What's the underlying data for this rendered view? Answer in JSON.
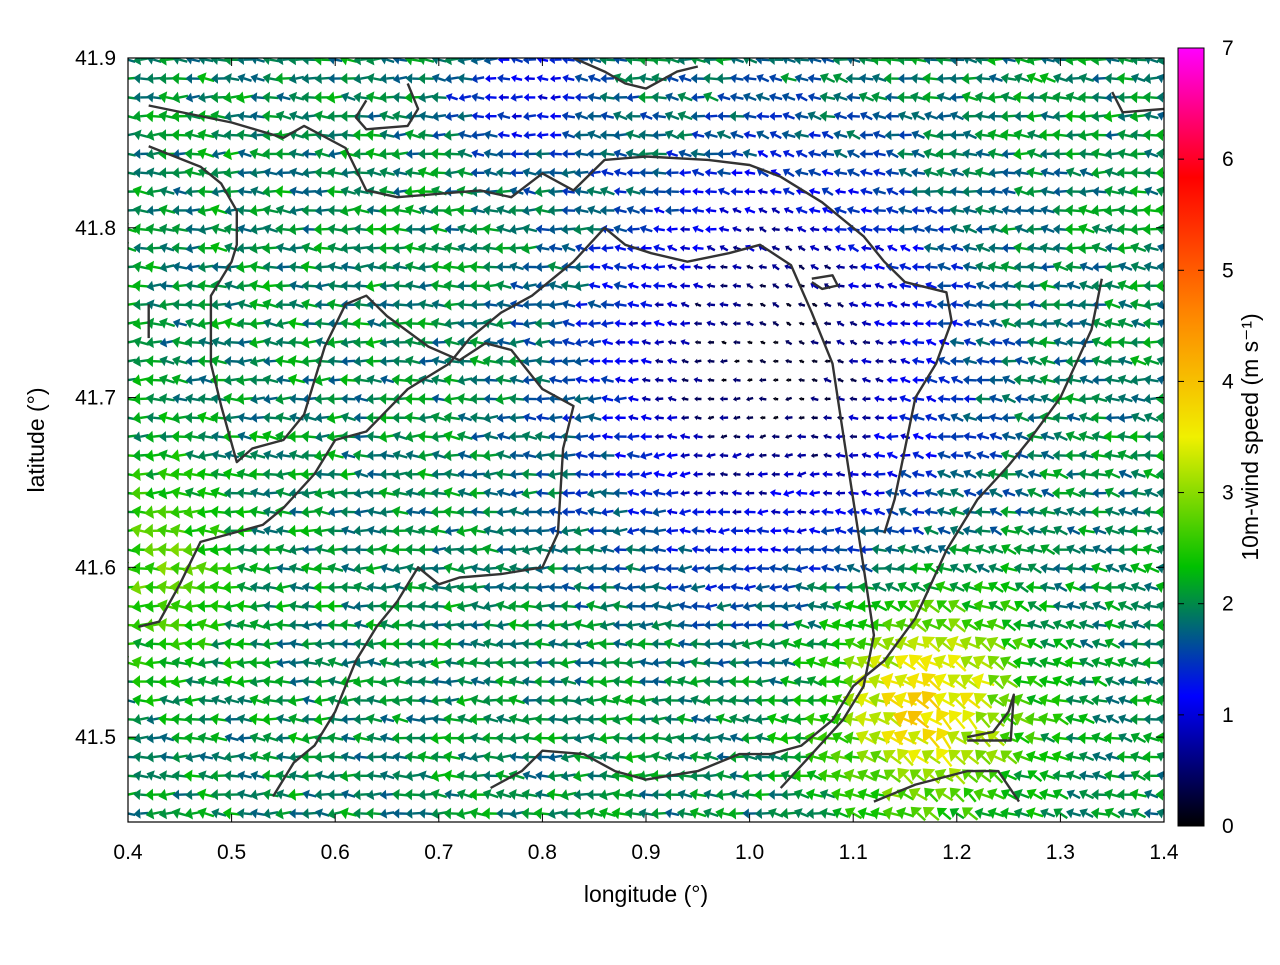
{
  "chart_data": {
    "type": "vector-field",
    "xlabel": "longitude (°)",
    "ylabel": "latitude (°)",
    "xlim": [
      0.4,
      1.4
    ],
    "ylim": [
      41.45,
      41.9
    ],
    "xticks": [
      "0.4",
      "0.5",
      "0.6",
      "0.7",
      "0.8",
      "0.9",
      "1.0",
      "1.1",
      "1.2",
      "1.3",
      "1.4"
    ],
    "yticks": [
      "41.5",
      "41.6",
      "41.7",
      "41.8",
      "41.9"
    ],
    "colorbar": {
      "label": "10m-wind speed (m s⁻¹)",
      "range": [
        0,
        7
      ],
      "ticks": [
        "0",
        "1",
        "2",
        "3",
        "4",
        "5",
        "6",
        "7"
      ],
      "palette": [
        "#000000",
        "#0000ff",
        "#00c000",
        "#f0f000",
        "#ff8000",
        "#ff0000",
        "#ff00ff"
      ]
    },
    "grid": false,
    "vector_grid": {
      "lon_start": 0.4,
      "lon_step": 0.0125,
      "lat_start": 41.455,
      "lat_step": 0.0111
    },
    "flow_centers": [
      {
        "lon": 1.02,
        "lat": 41.72,
        "kind": "divergence",
        "strength": 0.9
      },
      {
        "lon": 1.19,
        "lat": 41.54,
        "kind": "divergence",
        "strength": 0.5
      },
      {
        "lon": 0.78,
        "lat": 41.87,
        "kind": "calm",
        "strength": 0.4
      }
    ],
    "contour_lines": [
      [
        [
          0.42,
          41.872
        ],
        [
          0.5,
          41.862
        ],
        [
          0.55,
          41.853
        ],
        [
          0.57,
          41.86
        ],
        [
          0.61,
          41.847
        ],
        [
          0.63,
          41.822
        ],
        [
          0.66,
          41.818
        ],
        [
          0.74,
          41.822
        ],
        [
          0.77,
          41.818
        ],
        [
          0.8,
          41.832
        ],
        [
          0.83,
          41.822
        ],
        [
          0.86,
          41.84
        ],
        [
          0.9,
          41.842
        ],
        [
          0.96,
          41.84
        ],
        [
          1.0,
          41.837
        ],
        [
          1.03,
          41.83
        ],
        [
          1.07,
          41.815
        ],
        [
          1.11,
          41.795
        ],
        [
          1.13,
          41.78
        ],
        [
          1.15,
          41.768
        ],
        [
          1.19,
          41.762
        ],
        [
          1.195,
          41.745
        ],
        [
          1.18,
          41.72
        ],
        [
          1.16,
          41.7
        ],
        [
          1.15,
          41.67
        ],
        [
          1.14,
          41.64
        ],
        [
          1.13,
          41.62
        ]
      ],
      [
        [
          0.42,
          41.848
        ],
        [
          0.47,
          41.836
        ],
        [
          0.49,
          41.826
        ],
        [
          0.505,
          41.81
        ],
        [
          0.505,
          41.79
        ],
        [
          0.5,
          41.78
        ],
        [
          0.48,
          41.76
        ],
        [
          0.48,
          41.72
        ],
        [
          0.49,
          41.695
        ],
        [
          0.505,
          41.662
        ],
        [
          0.52,
          41.67
        ],
        [
          0.55,
          41.675
        ],
        [
          0.57,
          41.69
        ],
        [
          0.59,
          41.73
        ],
        [
          0.61,
          41.755
        ],
        [
          0.63,
          41.76
        ],
        [
          0.65,
          41.748
        ],
        [
          0.69,
          41.73
        ],
        [
          0.72,
          41.722
        ],
        [
          0.745,
          41.732
        ],
        [
          0.77,
          41.728
        ],
        [
          0.8,
          41.705
        ],
        [
          0.83,
          41.695
        ],
        [
          0.82,
          41.67
        ],
        [
          0.815,
          41.62
        ],
        [
          0.8,
          41.6
        ],
        [
          0.76,
          41.596
        ],
        [
          0.72,
          41.594
        ],
        [
          0.7,
          41.59
        ],
        [
          0.68,
          41.6
        ],
        [
          0.66,
          41.58
        ],
        [
          0.64,
          41.565
        ],
        [
          0.62,
          41.545
        ],
        [
          0.6,
          41.515
        ],
        [
          0.58,
          41.495
        ],
        [
          0.56,
          41.485
        ],
        [
          0.54,
          41.465
        ]
      ],
      [
        [
          0.41,
          41.565
        ],
        [
          0.43,
          41.568
        ],
        [
          0.45,
          41.59
        ],
        [
          0.47,
          41.615
        ],
        [
          0.5,
          41.62
        ],
        [
          0.53,
          41.625
        ],
        [
          0.55,
          41.635
        ],
        [
          0.58,
          41.655
        ],
        [
          0.6,
          41.675
        ],
        [
          0.63,
          41.68
        ],
        [
          0.67,
          41.705
        ],
        [
          0.71,
          41.72
        ],
        [
          0.73,
          41.735
        ],
        [
          0.76,
          41.75
        ],
        [
          0.79,
          41.76
        ],
        [
          0.83,
          41.78
        ],
        [
          0.86,
          41.8
        ],
        [
          0.88,
          41.79
        ],
        [
          0.905,
          41.785
        ],
        [
          0.94,
          41.78
        ],
        [
          0.98,
          41.785
        ],
        [
          1.01,
          41.79
        ],
        [
          1.04,
          41.778
        ],
        [
          1.06,
          41.75
        ],
        [
          1.08,
          41.72
        ],
        [
          1.09,
          41.68
        ],
        [
          1.1,
          41.64
        ],
        [
          1.11,
          41.6
        ],
        [
          1.12,
          41.56
        ],
        [
          1.11,
          41.53
        ],
        [
          1.09,
          41.51
        ],
        [
          1.06,
          41.49
        ],
        [
          1.03,
          41.47
        ]
      ],
      [
        [
          0.75,
          41.47
        ],
        [
          0.78,
          41.48
        ],
        [
          0.8,
          41.492
        ],
        [
          0.84,
          41.49
        ],
        [
          0.87,
          41.48
        ],
        [
          0.9,
          41.475
        ],
        [
          0.95,
          41.48
        ],
        [
          0.99,
          41.49
        ],
        [
          1.02,
          41.49
        ],
        [
          1.05,
          41.495
        ],
        [
          1.08,
          41.51
        ],
        [
          1.1,
          41.53
        ],
        [
          1.13,
          41.545
        ],
        [
          1.16,
          41.57
        ],
        [
          1.19,
          41.61
        ],
        [
          1.22,
          41.64
        ],
        [
          1.25,
          41.66
        ],
        [
          1.27,
          41.675
        ],
        [
          1.3,
          41.7
        ],
        [
          1.33,
          41.74
        ],
        [
          1.34,
          41.77
        ]
      ],
      [
        [
          1.12,
          41.462
        ],
        [
          1.16,
          41.472
        ],
        [
          1.21,
          41.48
        ],
        [
          1.24,
          41.48
        ],
        [
          1.26,
          41.462
        ]
      ],
      [
        [
          1.21,
          41.5
        ],
        [
          1.235,
          41.503
        ],
        [
          1.25,
          41.515
        ],
        [
          1.255,
          41.525
        ],
        [
          1.252,
          41.498
        ],
        [
          1.21,
          41.498
        ]
      ],
      [
        [
          1.06,
          41.77
        ],
        [
          1.08,
          41.772
        ],
        [
          1.085,
          41.766
        ],
        [
          1.07,
          41.764
        ],
        [
          1.06,
          41.768
        ]
      ],
      [
        [
          0.63,
          41.875
        ],
        [
          0.62,
          41.865
        ],
        [
          0.63,
          41.858
        ],
        [
          0.67,
          41.86
        ],
        [
          0.68,
          41.87
        ],
        [
          0.67,
          41.885
        ]
      ],
      [
        [
          0.83,
          41.9
        ],
        [
          0.86,
          41.892
        ],
        [
          0.88,
          41.885
        ],
        [
          0.9,
          41.882
        ],
        [
          0.93,
          41.892
        ],
        [
          0.95,
          41.895
        ]
      ],
      [
        [
          1.35,
          41.88
        ],
        [
          1.36,
          41.868
        ],
        [
          1.4,
          41.87
        ],
        [
          1.42,
          41.855
        ]
      ],
      [
        [
          0.42,
          41.755
        ],
        [
          0.42,
          41.735
        ]
      ]
    ]
  }
}
